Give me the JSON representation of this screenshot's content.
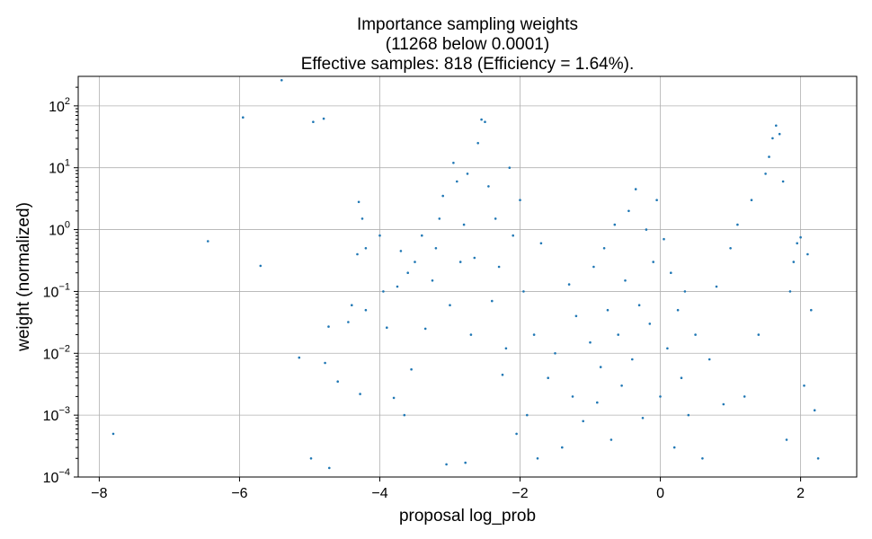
{
  "chart_data": {
    "type": "scatter",
    "title": [
      "Importance sampling weights",
      "(11268 below 0.0001)",
      "Effective samples: 818 (Efficiency = 1.64%)."
    ],
    "xlabel": "proposal log_prob",
    "ylabel": "weight (normalized)",
    "xlim": [
      -8.3,
      2.8
    ],
    "ylim": [
      0.0001,
      300
    ],
    "yscale": "log",
    "grid": true,
    "marker_color": "#1f77b4",
    "x_ticks": [
      {
        "value": -8,
        "label": "−8"
      },
      {
        "value": -6,
        "label": "−6"
      },
      {
        "value": -4,
        "label": "−4"
      },
      {
        "value": -2,
        "label": "−2"
      },
      {
        "value": 0,
        "label": "0"
      },
      {
        "value": 2,
        "label": "2"
      }
    ],
    "y_ticks": [
      {
        "value": 0.0001,
        "base": "10",
        "exp": "−4"
      },
      {
        "value": 0.001,
        "base": "10",
        "exp": "−3"
      },
      {
        "value": 0.01,
        "base": "10",
        "exp": "−2"
      },
      {
        "value": 0.1,
        "base": "10",
        "exp": "−1"
      },
      {
        "value": 1,
        "base": "10",
        "exp": "0"
      },
      {
        "value": 10,
        "base": "10",
        "exp": "1"
      },
      {
        "value": 100,
        "base": "10",
        "exp": "2"
      }
    ],
    "points": [
      {
        "x": -7.8,
        "y": 0.0005
      },
      {
        "x": -6.45,
        "y": 0.65
      },
      {
        "x": -5.95,
        "y": 65
      },
      {
        "x": -5.7,
        "y": 0.26
      },
      {
        "x": -5.4,
        "y": 260
      },
      {
        "x": -5.15,
        "y": 0.0085
      },
      {
        "x": -4.98,
        "y": 0.0002
      },
      {
        "x": -4.95,
        "y": 55
      },
      {
        "x": -4.8,
        "y": 62
      },
      {
        "x": -4.78,
        "y": 0.007
      },
      {
        "x": -4.73,
        "y": 0.027
      },
      {
        "x": -4.72,
        "y": 0.00014
      },
      {
        "x": -4.6,
        "y": 0.0035
      },
      {
        "x": -4.45,
        "y": 0.032
      },
      {
        "x": -4.4,
        "y": 0.06
      },
      {
        "x": -4.32,
        "y": 0.4
      },
      {
        "x": -4.3,
        "y": 2.8
      },
      {
        "x": -4.28,
        "y": 0.0022
      },
      {
        "x": -4.25,
        "y": 1.5
      },
      {
        "x": -4.2,
        "y": 0.5
      },
      {
        "x": -4.2,
        "y": 0.05
      },
      {
        "x": -4.0,
        "y": 0.8
      },
      {
        "x": -3.95,
        "y": 0.1
      },
      {
        "x": -3.9,
        "y": 0.026
      },
      {
        "x": -3.8,
        "y": 0.0019
      },
      {
        "x": -3.75,
        "y": 0.12
      },
      {
        "x": -3.7,
        "y": 0.45
      },
      {
        "x": -3.65,
        "y": 0.001
      },
      {
        "x": -3.6,
        "y": 0.2
      },
      {
        "x": -3.55,
        "y": 0.0055
      },
      {
        "x": -3.5,
        "y": 0.3
      },
      {
        "x": -3.4,
        "y": 0.8
      },
      {
        "x": -3.35,
        "y": 0.025
      },
      {
        "x": -3.25,
        "y": 0.15
      },
      {
        "x": -3.2,
        "y": 0.5
      },
      {
        "x": -3.15,
        "y": 1.5
      },
      {
        "x": -3.1,
        "y": 3.5
      },
      {
        "x": -3.05,
        "y": 0.00016
      },
      {
        "x": -3.0,
        "y": 0.06
      },
      {
        "x": -2.95,
        "y": 12
      },
      {
        "x": -2.9,
        "y": 6
      },
      {
        "x": -2.85,
        "y": 0.3
      },
      {
        "x": -2.8,
        "y": 1.2
      },
      {
        "x": -2.78,
        "y": 0.00017
      },
      {
        "x": -2.75,
        "y": 8
      },
      {
        "x": -2.7,
        "y": 0.02
      },
      {
        "x": -2.65,
        "y": 0.35
      },
      {
        "x": -2.6,
        "y": 25
      },
      {
        "x": -2.55,
        "y": 60
      },
      {
        "x": -2.5,
        "y": 55
      },
      {
        "x": -2.45,
        "y": 5
      },
      {
        "x": -2.4,
        "y": 0.07
      },
      {
        "x": -2.35,
        "y": 1.5
      },
      {
        "x": -2.3,
        "y": 0.25
      },
      {
        "x": -2.25,
        "y": 0.0045
      },
      {
        "x": -2.2,
        "y": 0.012
      },
      {
        "x": -2.15,
        "y": 10
      },
      {
        "x": -2.1,
        "y": 0.8
      },
      {
        "x": -2.05,
        "y": 0.0005
      },
      {
        "x": -2.0,
        "y": 3
      },
      {
        "x": -1.95,
        "y": 0.1
      },
      {
        "x": -1.9,
        "y": 0.001
      },
      {
        "x": -1.8,
        "y": 0.02
      },
      {
        "x": -1.75,
        "y": 0.0002
      },
      {
        "x": -1.7,
        "y": 0.6
      },
      {
        "x": -1.6,
        "y": 0.004
      },
      {
        "x": -1.5,
        "y": 0.01
      },
      {
        "x": -1.4,
        "y": 0.0003
      },
      {
        "x": -1.3,
        "y": 0.13
      },
      {
        "x": -1.25,
        "y": 0.002
      },
      {
        "x": -1.2,
        "y": 0.04
      },
      {
        "x": -1.1,
        "y": 0.0008
      },
      {
        "x": -1.0,
        "y": 0.015
      },
      {
        "x": -0.95,
        "y": 0.25
      },
      {
        "x": -0.9,
        "y": 0.0016
      },
      {
        "x": -0.85,
        "y": 0.006
      },
      {
        "x": -0.8,
        "y": 0.5
      },
      {
        "x": -0.75,
        "y": 0.05
      },
      {
        "x": -0.7,
        "y": 0.0004
      },
      {
        "x": -0.65,
        "y": 1.2
      },
      {
        "x": -0.6,
        "y": 0.02
      },
      {
        "x": -0.55,
        "y": 0.003
      },
      {
        "x": -0.5,
        "y": 0.15
      },
      {
        "x": -0.45,
        "y": 2
      },
      {
        "x": -0.4,
        "y": 0.008
      },
      {
        "x": -0.35,
        "y": 4.5
      },
      {
        "x": -0.3,
        "y": 0.06
      },
      {
        "x": -0.25,
        "y": 0.0009
      },
      {
        "x": -0.2,
        "y": 1
      },
      {
        "x": -0.15,
        "y": 0.03
      },
      {
        "x": -0.1,
        "y": 0.3
      },
      {
        "x": -0.05,
        "y": 3
      },
      {
        "x": 0.0,
        "y": 0.002
      },
      {
        "x": 0.05,
        "y": 0.7
      },
      {
        "x": 0.1,
        "y": 0.012
      },
      {
        "x": 0.15,
        "y": 0.2
      },
      {
        "x": 0.2,
        "y": 0.0003
      },
      {
        "x": 0.25,
        "y": 0.05
      },
      {
        "x": 0.3,
        "y": 0.004
      },
      {
        "x": 0.35,
        "y": 0.1
      },
      {
        "x": 0.4,
        "y": 0.001
      },
      {
        "x": 0.5,
        "y": 0.02
      },
      {
        "x": 0.6,
        "y": 0.0002
      },
      {
        "x": 0.7,
        "y": 0.008
      },
      {
        "x": 0.8,
        "y": 0.12
      },
      {
        "x": 0.9,
        "y": 0.0015
      },
      {
        "x": 1.0,
        "y": 0.5
      },
      {
        "x": 1.1,
        "y": 1.2
      },
      {
        "x": 1.2,
        "y": 0.002
      },
      {
        "x": 1.3,
        "y": 3
      },
      {
        "x": 1.4,
        "y": 0.02
      },
      {
        "x": 1.5,
        "y": 8
      },
      {
        "x": 1.55,
        "y": 15
      },
      {
        "x": 1.6,
        "y": 30
      },
      {
        "x": 1.65,
        "y": 48
      },
      {
        "x": 1.7,
        "y": 35
      },
      {
        "x": 1.75,
        "y": 6
      },
      {
        "x": 1.8,
        "y": 0.0004
      },
      {
        "x": 1.85,
        "y": 0.1
      },
      {
        "x": 1.9,
        "y": 0.3
      },
      {
        "x": 1.95,
        "y": 0.6
      },
      {
        "x": 2.0,
        "y": 0.75
      },
      {
        "x": 2.05,
        "y": 0.003
      },
      {
        "x": 2.1,
        "y": 0.4
      },
      {
        "x": 2.15,
        "y": 0.05
      },
      {
        "x": 2.2,
        "y": 0.0012
      },
      {
        "x": 2.25,
        "y": 0.0002
      }
    ]
  }
}
